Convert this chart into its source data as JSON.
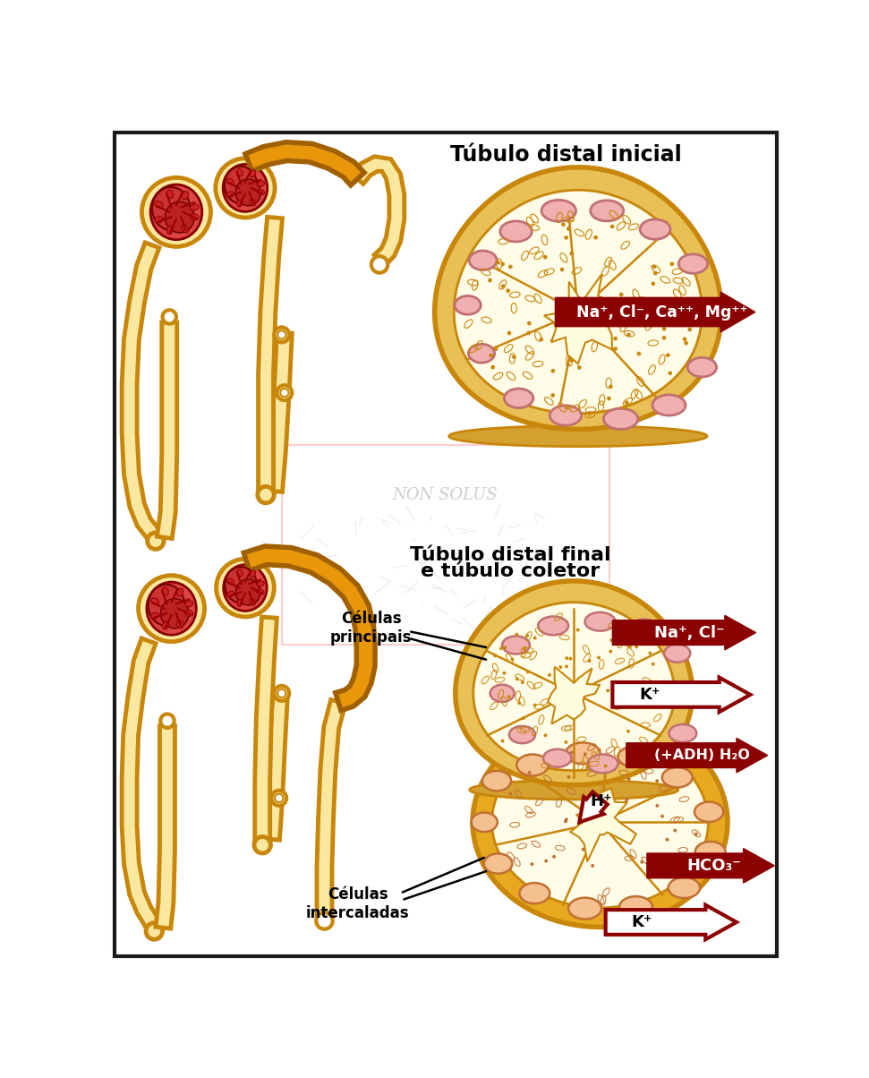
{
  "title_upper": "Túbulo distal inicial",
  "title_lower1": "Túbulo distal final",
  "title_lower2": "e túbulo coletor",
  "bg_color": "#ffffff",
  "border_color": "#1a1a1a",
  "tube_fill": "#FAE8A0",
  "tube_wall": "#E8C060",
  "tube_stroke": "#C8860A",
  "orange_seg": "#E8960A",
  "cell_pale": "#FFFCE8",
  "nucleus_fill": "#F0B0B0",
  "nucleus_edge": "#C07070",
  "intercal_fill": "#F5C090",
  "intercal_wall": "#E8A020",
  "arrow_color": "#8B0000",
  "label_nacl_ca_mg": "Na⁺, Cl⁻, Ca⁺⁺, Mg⁺⁺",
  "label_nacl": "Na⁺, Cl⁻",
  "label_k": "K⁺",
  "label_h2o": "(+ADH) H₂O",
  "label_h": "H⁺",
  "label_hco3": "HCO₃⁻",
  "label_celulas_principais": "Células\nprincipais",
  "label_celulas_intercaladas": "Células\nintercaladas"
}
